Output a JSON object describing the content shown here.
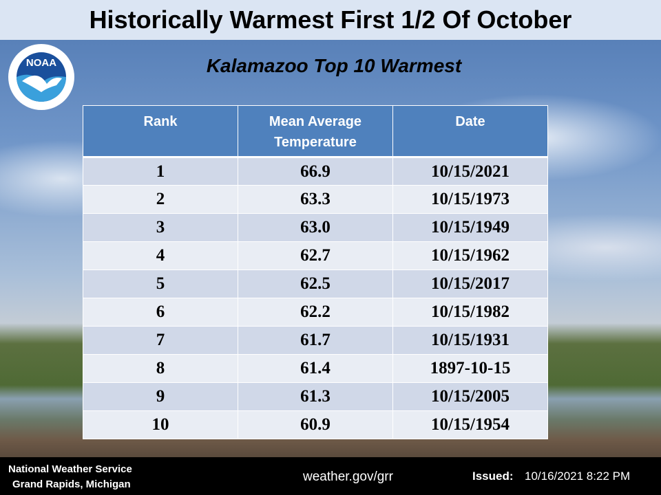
{
  "header": {
    "title": "Historically Warmest First 1/2 Of October"
  },
  "logo": {
    "label": "NOAA"
  },
  "subtitle": "Kalamazoo Top 10 Warmest",
  "table": {
    "columns": [
      "Rank",
      "Mean Average Temperature",
      "Date"
    ],
    "rows": [
      [
        "1",
        "66.9",
        "10/15/2021"
      ],
      [
        "2",
        "63.3",
        "10/15/1973"
      ],
      [
        "3",
        "63.0",
        "10/15/1949"
      ],
      [
        "4",
        "62.7",
        "10/15/1962"
      ],
      [
        "5",
        "62.5",
        "10/15/2017"
      ],
      [
        "6",
        "62.2",
        "10/15/1982"
      ],
      [
        "7",
        "61.7",
        "10/15/1931"
      ],
      [
        "8",
        "61.4",
        "1897-10-15"
      ],
      [
        "9",
        "61.3",
        "10/15/2005"
      ],
      [
        "10",
        "60.9",
        "10/15/1954"
      ]
    ]
  },
  "footer": {
    "office": "National Weather Service",
    "location": "Grand Rapids, Michigan",
    "url": "weather.gov/grr",
    "issued_label": "Issued:",
    "issued": "10/16/2021 8:22 PM"
  }
}
